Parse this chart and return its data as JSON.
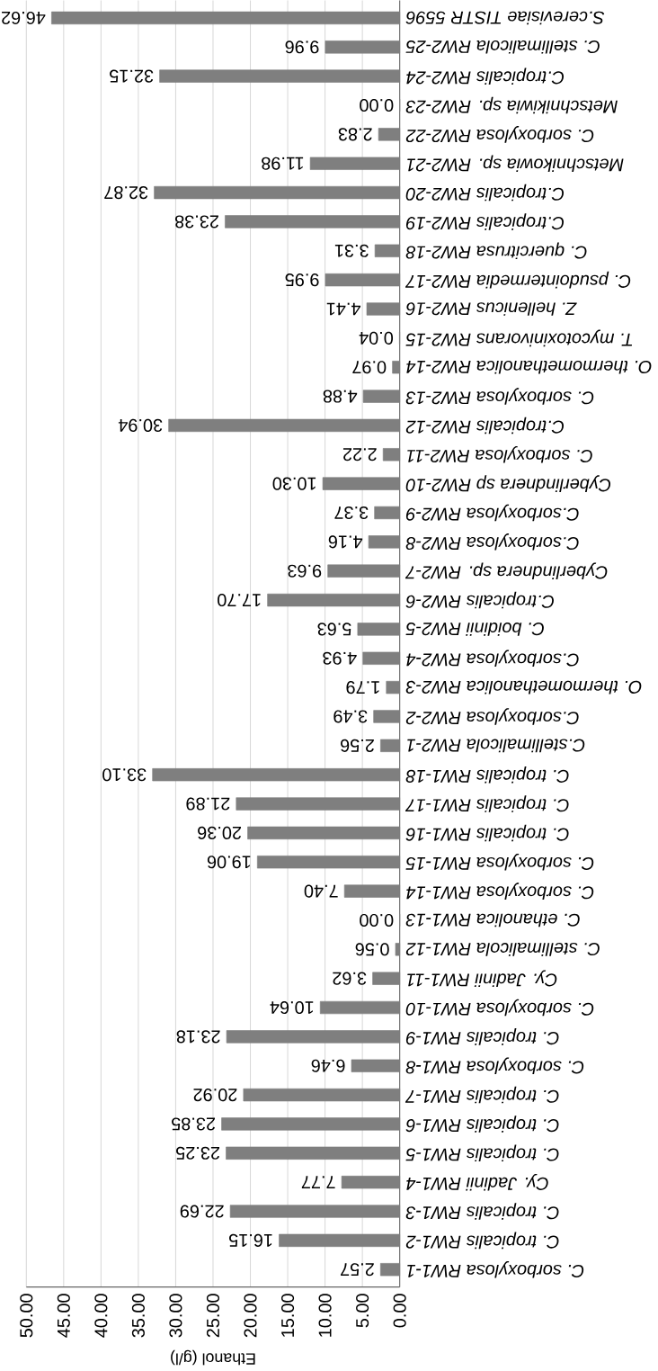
{
  "chart_data": {
    "type": "bar",
    "orientation": "horizontal",
    "xlabel": "Ethanol (g/l)",
    "categories": [
      "S.cerevisiae TISTR 5596",
      "C. stellimalicola RW2-25",
      "C.tropicalis RW2-24",
      "Metschnikiwia sp. RW2-23",
      "C. sorboxylosa  RW2-22",
      "Metschnikowia sp. RW2-21",
      "C.tropicalis RW2-20",
      "C.tropicalis RW2-19",
      "C. quercitrusa RW2-18",
      "C. psudointermedia RW2-17",
      "Z. hellenicus RW2-16",
      "T. mycotoxinivorans RW2-15",
      "O. thermomethanolica RW2-14",
      "C. sorboxylosa  RW2-13",
      "C.tropicalis RW2-12",
      "C. sorboxylosa RW2-11",
      "Cyberlindnera sp RW2-10",
      "C.sorboxylosa RW2-9",
      "C.sorboxylosa RW2-8",
      "Cyberlindnera sp. RW2-7",
      "C.tropicalis RW2-6",
      "C. boidinii RW2-5",
      "C.sorboxylosa RW2-4",
      "O. thermomethanolica RW2-3",
      "C.sorboxylosa RW2-2",
      "C.stellimalicola RW2-1",
      "C. tropicalis RW1-18",
      "C. tropicalis RW1-17",
      "C. tropicalis RW1-16",
      "C. sorboxylosa RW1-15",
      "C. sorboxylosa RW1-14",
      "C. ethanolica RW1-13",
      "C. stellimalicola RW1-12",
      "Cy. Jadinii RW1-11",
      "C. sorboxylosa RW1-10",
      "C. tropicalis RW1-9",
      "C. sorboxylosa RW1-8",
      "C. tropicalis RW1-7",
      "C. tropicalis RW1-6",
      "C. tropicalis RW1-5",
      "Cy. Jadinii RW1-4",
      "C. tropicalis RW1-3",
      "C. tropicalis RW1-2",
      "C. sorboxylosa RW1-1"
    ],
    "values": [
      46.62,
      9.96,
      32.15,
      0.0,
      2.83,
      11.98,
      32.87,
      23.38,
      3.31,
      9.95,
      4.41,
      0.04,
      0.97,
      4.88,
      30.94,
      2.22,
      10.3,
      3.37,
      4.16,
      9.63,
      17.7,
      5.63,
      4.93,
      1.79,
      3.49,
      2.56,
      33.1,
      21.89,
      20.36,
      19.06,
      7.4,
      0.0,
      0.56,
      3.62,
      10.64,
      23.18,
      6.46,
      20.92,
      23.85,
      23.25,
      7.77,
      22.69,
      16.15,
      2.57
    ],
    "value_labels": [
      "46.62",
      "9.96",
      "32.15",
      "0.00",
      "2.83",
      "11.98",
      "32.87",
      "23.38",
      "3.31",
      "9.95",
      "4.41",
      "0.04",
      "0.97",
      "4.88",
      "30.94",
      "2.22",
      "10.30",
      "3.37",
      "4.16",
      "9.63",
      "17.70",
      "5.63",
      "4.93",
      "1.79",
      "3.49",
      "2.56",
      "33.10",
      "21.89",
      "20.36",
      "19.06",
      "7.40",
      "0.00",
      "0.56",
      "3.62",
      "10.64",
      "23.18",
      "6.46",
      "20.92",
      "23.85",
      "23.25",
      "7.77",
      "22.69",
      "16.15",
      "2.57"
    ],
    "color": "#7f7f7f",
    "xlim": [
      50,
      0
    ],
    "xticks": [
      {
        "value": 50,
        "label": "50.00"
      },
      {
        "value": 45,
        "label": "45.00"
      },
      {
        "value": 40,
        "label": "40.00"
      },
      {
        "value": 35,
        "label": "35.00"
      },
      {
        "value": 30,
        "label": "30.00"
      },
      {
        "value": 25,
        "label": "25.00"
      },
      {
        "value": 20,
        "label": "20.00"
      },
      {
        "value": 15,
        "label": "15.00"
      },
      {
        "value": 10,
        "label": "10.00"
      },
      {
        "value": 5,
        "label": "5.00"
      },
      {
        "value": 0,
        "label": "0.00"
      }
    ],
    "grid": "x"
  }
}
